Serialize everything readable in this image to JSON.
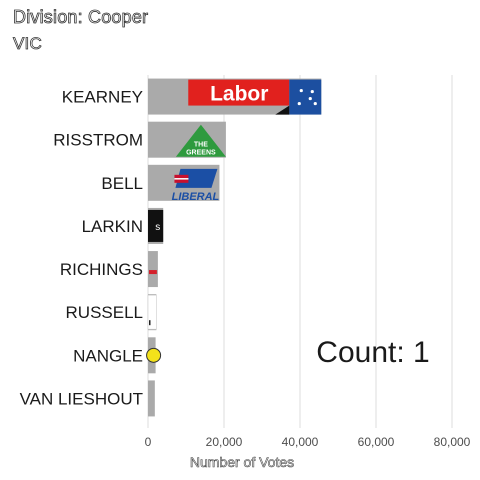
{
  "chart_data": {
    "type": "bar",
    "orientation": "horizontal",
    "title": "Division: Cooper",
    "subtitle": "VIC",
    "categories": [
      "KEARNEY",
      "RISSTROM",
      "BELL",
      "LARKIN",
      "RICHINGS",
      "RUSSELL",
      "NANGLE",
      "VAN LIESHOUT"
    ],
    "values": [
      45600,
      20500,
      18800,
      4000,
      2600,
      2200,
      2000,
      1800
    ],
    "party_logos": [
      "Labor",
      "The Greens",
      "Liberal",
      "",
      "",
      "",
      "",
      ""
    ],
    "xlabel": "Number of Votes",
    "ylabel": "",
    "xlim": [
      0,
      88000
    ],
    "xticks": [
      0,
      20000,
      40000,
      60000,
      80000
    ],
    "xtick_labels": [
      "0",
      "20,000",
      "40,000",
      "60,000",
      "80,000"
    ],
    "grid": "vertical",
    "bar_color": "#aaaaaa",
    "annotation": "Count:  1",
    "logo_colors": {
      "labor_red": "#e1211e",
      "labor_blue": "#1c4fa0",
      "greens_green": "#2e9a3e",
      "liberal_blue": "#1b4fa5"
    }
  }
}
